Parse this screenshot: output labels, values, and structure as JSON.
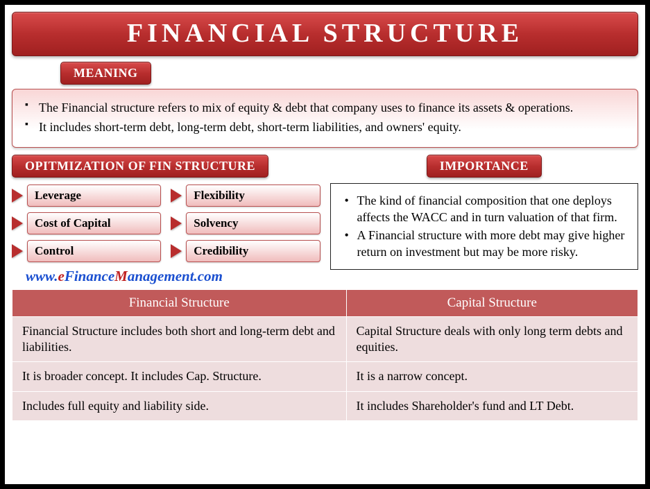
{
  "title": "FINANCIAL STRUCTURE",
  "meaning": {
    "label": "MEANING",
    "bullets": [
      "The Financial structure refers to mix of equity & debt that company uses to finance its assets & operations.",
      "It includes short-term debt, long-term debt, short-term liabilities, and owners' equity."
    ]
  },
  "optimization": {
    "label": "OPITMIZATION OF FIN STRUCTURE",
    "items": [
      "Leverage",
      "Flexibility",
      "Cost of Capital",
      "Solvency",
      "Control",
      "Credibility"
    ]
  },
  "importance": {
    "label": "IMPORTANCE",
    "bullets": [
      "The kind of financial composition that one deploys affects the WACC and in turn valuation of that firm.",
      "A Financial structure with more debt may give higher return on investment but may be more risky."
    ]
  },
  "website": {
    "p1": "www.",
    "p2": "e",
    "p3": "Finance",
    "p4": "M",
    "p5": "anagement.com"
  },
  "comparison": {
    "headers": [
      "Financial Structure",
      "Capital Structure"
    ],
    "rows": [
      [
        "Financial Structure includes both short and long-term debt and liabilities.",
        "Capital Structure deals with only long term debts and equities."
      ],
      [
        "It is broader concept. It includes Cap. Structure.",
        "It is a narrow concept."
      ],
      [
        "Includes full equity and liability side.",
        "It includes Shareholder's fund and LT Debt."
      ]
    ]
  },
  "colors": {
    "primary_red": "#b82e2e",
    "light_red": "#f0bcbc",
    "table_header": "#c15a5a",
    "table_cell": "#eeddde",
    "link_blue": "#1a4fd0"
  }
}
